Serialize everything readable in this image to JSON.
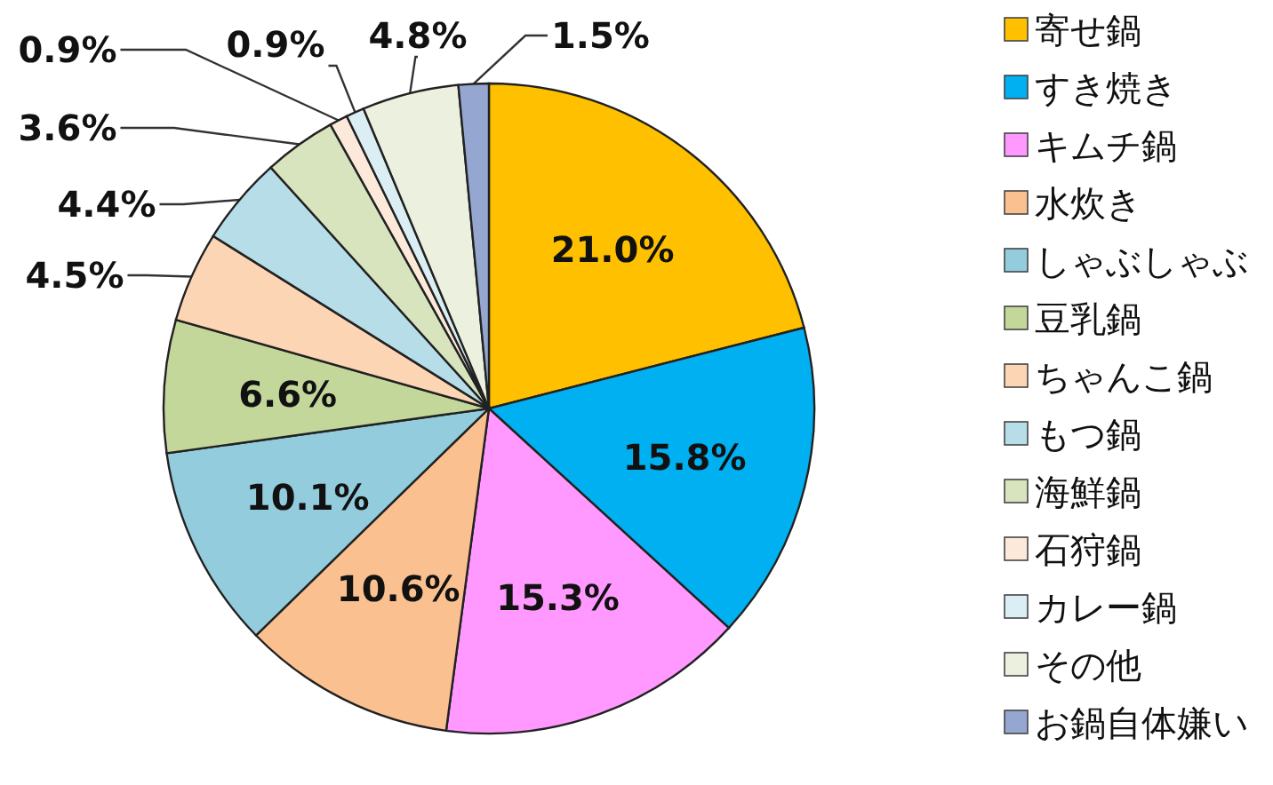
{
  "chart_data": {
    "type": "pie",
    "categories": [
      "寄せ鍋",
      "すき焼き",
      "キムチ鍋",
      "水炊き",
      "しゃぶしゃぶ",
      "豆乳鍋",
      "ちゃんこ鍋",
      "もつ鍋",
      "海鮮鍋",
      "石狩鍋",
      "カレー鍋",
      "その他",
      "お鍋自体嫌い"
    ],
    "values": [
      21.0,
      15.8,
      15.3,
      10.6,
      10.1,
      6.6,
      4.5,
      4.4,
      3.6,
      0.9,
      0.9,
      4.8,
      1.5
    ],
    "value_labels": [
      "21.0%",
      "15.8%",
      "15.3%",
      "10.6%",
      "10.1%",
      "6.6%",
      "4.5%",
      "4.4%",
      "3.6%",
      "0.9%",
      "0.9%",
      "4.8%",
      "1.5%"
    ],
    "colors": [
      "#ffc000",
      "#00b0f0",
      "#ff99ff",
      "#fac090",
      "#93cddd",
      "#c4d79b",
      "#fcd5b4",
      "#b7dee8",
      "#d7e4bd",
      "#fde9d9",
      "#dbeef4",
      "#ebf1de",
      "#95a7d0"
    ],
    "legend": "right"
  }
}
